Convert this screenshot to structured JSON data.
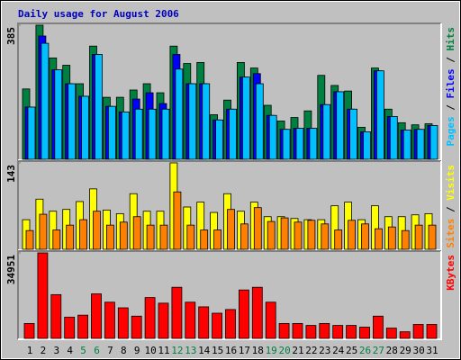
{
  "chart_data": [
    {
      "type": "bar",
      "title": "Daily usage for August 2006",
      "legend_separator": " / ",
      "ylim": [
        0,
        385
      ],
      "yticks": [
        385
      ],
      "series": [
        {
          "name": "Hits",
          "color": "#008040",
          "values": [
            202,
            385,
            291,
            270,
            217,
            325,
            178,
            178,
            199,
            217,
            191,
            325,
            275,
            278,
            128,
            170,
            278,
            262,
            155,
            110,
            120,
            139,
            241,
            212,
            196,
            92,
            262,
            144,
            105,
            99,
            102
          ]
        },
        {
          "name": "Files",
          "color": "#0000ff",
          "values": [
            150,
            354,
            257,
            217,
            181,
            301,
            152,
            136,
            173,
            191,
            160,
            301,
            217,
            217,
            113,
            144,
            236,
            246,
            126,
            86,
            89,
            89,
            157,
            194,
            144,
            79,
            254,
            123,
            84,
            86,
            97
          ]
        },
        {
          "name": "Pages",
          "color": "#00c0ff",
          "values": [
            150,
            333,
            257,
            217,
            181,
            301,
            152,
            136,
            144,
            144,
            144,
            259,
            217,
            217,
            113,
            144,
            236,
            217,
            126,
            86,
            89,
            89,
            157,
            194,
            144,
            79,
            254,
            123,
            84,
            86,
            97
          ]
        }
      ]
    },
    {
      "type": "bar",
      "legend_separator": " / ",
      "ylim": [
        0,
        143
      ],
      "yticks": [
        143
      ],
      "series": [
        {
          "name": "Visits",
          "color": "#ffff00",
          "values": [
            49,
            83,
            63,
            66,
            79,
            100,
            65,
            59,
            92,
            63,
            63,
            143,
            70,
            78,
            61,
            92,
            63,
            78,
            54,
            54,
            51,
            49,
            49,
            72,
            78,
            49,
            72,
            54,
            54,
            57,
            59
          ]
        },
        {
          "name": "Sites",
          "color": "#ff8000",
          "values": [
            31,
            58,
            32,
            40,
            49,
            63,
            40,
            45,
            54,
            40,
            40,
            95,
            40,
            32,
            32,
            66,
            42,
            69,
            46,
            52,
            45,
            48,
            42,
            32,
            48,
            42,
            34,
            37,
            31,
            40,
            40
          ]
        }
      ]
    },
    {
      "type": "bar",
      "ylim": [
        0,
        34951
      ],
      "yticks": [
        34951
      ],
      "categories": [
        "1",
        "2",
        "3",
        "4",
        "5",
        "6",
        "7",
        "8",
        "9",
        "10",
        "11",
        "12",
        "13",
        "14",
        "15",
        "16",
        "17",
        "18",
        "19",
        "20",
        "21",
        "22",
        "23",
        "24",
        "25",
        "26",
        "27",
        "28",
        "29",
        "30",
        "31"
      ],
      "category_colors": [
        "#000000",
        "#000000",
        "#000000",
        "#000000",
        "#008040",
        "#008040",
        "#000000",
        "#000000",
        "#000000",
        "#000000",
        "#000000",
        "#008040",
        "#008040",
        "#000000",
        "#000000",
        "#000000",
        "#000000",
        "#000000",
        "#008040",
        "#008040",
        "#000000",
        "#000000",
        "#000000",
        "#000000",
        "#000000",
        "#008040",
        "#008040",
        "#000000",
        "#000000",
        "#000000",
        "#000000"
      ],
      "series": [
        {
          "name": "KBytes",
          "color": "#ff0000",
          "values": [
            6100,
            34951,
            17900,
            8700,
            9500,
            18200,
            14800,
            12500,
            9100,
            16700,
            14400,
            20900,
            14800,
            12900,
            10300,
            11800,
            19800,
            20900,
            14800,
            6100,
            6100,
            5300,
            6100,
            5300,
            5300,
            4600,
            9100,
            4200,
            2700,
            5700,
            5700
          ]
        }
      ]
    }
  ]
}
